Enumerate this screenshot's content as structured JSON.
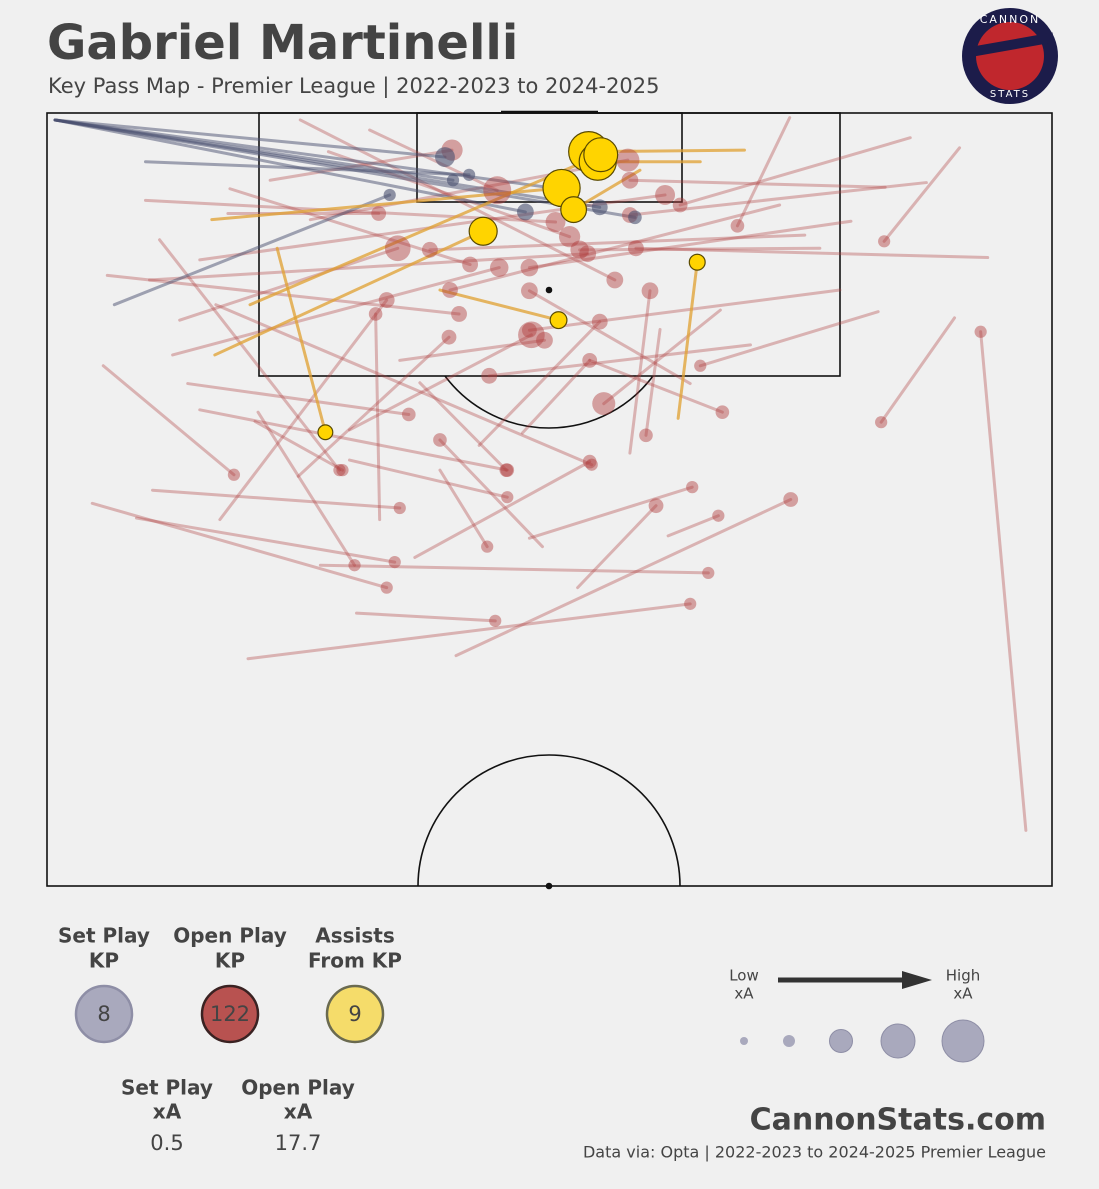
{
  "chart_data": {
    "type": "pass-map",
    "title": "Gabriel Martinelli",
    "subtitle": "Key Pass Map - Premier League | 2022-2023 to 2024-2025",
    "logo": [
      "CANNON",
      "STATS"
    ],
    "footer_brand": "CannonStats.com",
    "footer_source": "Data via: Opta | 2022-2023 to 2024-2025 Premier League",
    "size_legend": {
      "low": [
        "Low",
        "xA"
      ],
      "high": [
        "High",
        "xA"
      ]
    },
    "stats": [
      {
        "label": [
          "Set Play",
          "KP"
        ],
        "value": 8,
        "fill": "#a9a9bd",
        "stroke": "#8e8ea6"
      },
      {
        "label": [
          "Open Play",
          "KP"
        ],
        "value": 122,
        "fill": "#b85250",
        "stroke": "#3a2222"
      },
      {
        "label": [
          "Assists",
          "From KP"
        ],
        "value": 9,
        "fill": "#f5dc6a",
        "stroke": "#6a6a50"
      }
    ],
    "xa_stats": [
      {
        "label": [
          "Set Play",
          "xA"
        ],
        "value": 0.5
      },
      {
        "label": [
          "Open Play",
          "xA"
        ],
        "value": 17.7
      }
    ],
    "xlim": [
      0,
      100
    ],
    "ylim": [
      0,
      100
    ],
    "groups": [
      {
        "key": "open_play",
        "line": "#b04040",
        "dot": "#b03c3c",
        "opacity": 0.35,
        "dot_opacity": 0.45,
        "outline": "none",
        "passes": [
          [
            90.8,
            4.5,
            83.3,
            16.6,
            0.02
          ],
          [
            90.3,
            26.5,
            83,
            40,
            0.02
          ],
          [
            97.4,
            92.8,
            92.9,
            28.3,
            0.02
          ],
          [
            5.6,
            32.7,
            18.6,
            46.8,
            0.02
          ],
          [
            4.5,
            50.5,
            33.8,
            61.4,
            0.02
          ],
          [
            20,
            70.6,
            64,
            63.5,
            0.02
          ],
          [
            40.7,
            70.2,
            74,
            50,
            0.04
          ],
          [
            52.8,
            61.4,
            60.6,
            50.8,
            0.04
          ],
          [
            48,
            55,
            64.2,
            48.4,
            0.02
          ],
          [
            30.8,
            64.7,
            44.6,
            65.7,
            0.02
          ],
          [
            27.2,
            58.5,
            65.8,
            59.5,
            0.02
          ],
          [
            36.6,
            57.5,
            54,
            45.1,
            0.03
          ],
          [
            61.8,
            54.7,
            66.8,
            52.1,
            0.02
          ],
          [
            73.9,
            0.6,
            68.7,
            14.6,
            0.03
          ],
          [
            85.9,
            3.2,
            63,
            11.9,
            0.04
          ],
          [
            93.6,
            18.7,
            58.6,
            17.5,
            0.05
          ],
          [
            82.7,
            25.7,
            65,
            32.7,
            0.02
          ],
          [
            54,
            32,
            67.2,
            38.7,
            0.03
          ],
          [
            61,
            28,
            59.6,
            41.7,
            0.03
          ],
          [
            67,
            25.5,
            55.4,
            37.6,
            0.15
          ],
          [
            8.9,
            52.4,
            34.6,
            58.1,
            0.02
          ],
          [
            10.5,
            48.8,
            35.1,
            51.1,
            0.02
          ],
          [
            17.2,
            52.6,
            33.8,
            24.2,
            0.05
          ],
          [
            21,
            38.7,
            30.6,
            58.5,
            0.02
          ],
          [
            20.7,
            39.9,
            29.4,
            46.2,
            0.02
          ],
          [
            15.2,
            38.4,
            45.8,
            46.2,
            0.03
          ],
          [
            30.1,
            44.9,
            45.8,
            49.7,
            0.02
          ],
          [
            39.1,
            46.2,
            43.8,
            56.1,
            0.02
          ],
          [
            11.2,
            16.4,
            29.1,
            46.2,
            0.02
          ],
          [
            16.8,
            24.8,
            54.2,
            45.5,
            0.02
          ],
          [
            10.2,
            21.6,
            53.8,
            18.2,
            0.06
          ],
          [
            9.8,
            11.3,
            50.6,
            14.1,
            0.1
          ],
          [
            18.2,
            9.8,
            42.1,
            19.6,
            0.05
          ],
          [
            25.2,
            0.9,
            56.5,
            21.6,
            0.06
          ],
          [
            75.4,
            15.8,
            38.1,
            17.7,
            0.05
          ],
          [
            78.9,
            22.9,
            48,
            28.1,
            0.04
          ],
          [
            83.4,
            9.6,
            58,
            8.7,
            0.06
          ],
          [
            72.9,
            11.9,
            40.1,
            22.9,
            0.05
          ],
          [
            32.1,
            2.2,
            44.8,
            10,
            0.25
          ],
          [
            22.2,
            8.7,
            40.3,
            4.8,
            0.12
          ],
          [
            26.2,
            13.8,
            57.8,
            6.1,
            0.15
          ],
          [
            15.2,
            19,
            61.5,
            10.6,
            0.1
          ],
          [
            30.1,
            41,
            48.2,
            28.7,
            0.22
          ],
          [
            13.2,
            26.8,
            34.9,
            17.5,
            0.2
          ],
          [
            35.1,
            32,
            49.5,
            29.4,
            0.06
          ],
          [
            33.1,
            52.6,
            32.7,
            26,
            0.03
          ],
          [
            76.9,
            17.5,
            53,
            17.7,
            0.08
          ],
          [
            87.5,
            9,
            58,
            13.2,
            0.05
          ],
          [
            47.3,
            41.4,
            54,
            32,
            0.04
          ],
          [
            49.3,
            56.1,
            39.1,
            42.3,
            0.03
          ],
          [
            37.1,
            34.9,
            45.7,
            46.2,
            0.03
          ],
          [
            12.5,
            31.3,
            45,
            20,
            0.08
          ],
          [
            6,
            21,
            41,
            26,
            0.05
          ],
          [
            28,
            5,
            52,
            16,
            0.12
          ],
          [
            80,
            14,
            48,
            20,
            0.07
          ],
          [
            70,
            30,
            44,
            34,
            0.05
          ],
          [
            18,
            13,
            33,
            13,
            0.04
          ],
          [
            58,
            44,
            60,
            23,
            0.06
          ],
          [
            25,
            47,
            40,
            29,
            0.04
          ],
          [
            43,
            43,
            55,
            27,
            0.05
          ],
          [
            14,
            35,
            36,
            39,
            0.03
          ],
          [
            64,
            35,
            48,
            23,
            0.06
          ]
        ]
      },
      {
        "key": "set_play",
        "line": "#4a5070",
        "dot": "#4a5070",
        "opacity": 0.5,
        "dot_opacity": 0.6,
        "outline": "none",
        "passes": [
          [
            0.8,
            0.9,
            40.4,
            8.7,
            0.02
          ],
          [
            0.8,
            0.9,
            39.6,
            5.7,
            0.1
          ],
          [
            0.8,
            0.9,
            55,
            12.2,
            0.05
          ],
          [
            0.8,
            0.9,
            58.5,
            13.5,
            0.03
          ],
          [
            0.8,
            0.9,
            47.6,
            12.8,
            0.06
          ],
          [
            6.7,
            24.8,
            34.1,
            10.6,
            0.02
          ],
          [
            9.8,
            6.3,
            42,
            8,
            0.02
          ],
          [
            0.8,
            0.9,
            52,
            10,
            0.04
          ]
        ]
      },
      {
        "key": "assists",
        "line": "#e0a030",
        "dot": "#ffd400",
        "opacity": 0.75,
        "dot_opacity": 1,
        "outline": "#5a4a00",
        "passes": [
          [
            69.4,
            4.8,
            53.9,
            5,
            0.6
          ],
          [
            65,
            6.3,
            54.8,
            6.3,
            0.5
          ],
          [
            16.4,
            13.8,
            51.2,
            9.7,
            0.5
          ],
          [
            59,
            7.4,
            52.4,
            12.5,
            0.2
          ],
          [
            16.7,
            31.3,
            43.4,
            15.3,
            0.25
          ],
          [
            62.8,
            39.5,
            64.7,
            19.3,
            0.05
          ],
          [
            39.1,
            22.9,
            50.9,
            26.8,
            0.06
          ],
          [
            22.9,
            17.5,
            27.7,
            41.3,
            0.04
          ],
          [
            20.2,
            24.8,
            55.1,
            5.4,
            0.4
          ]
        ]
      }
    ]
  }
}
